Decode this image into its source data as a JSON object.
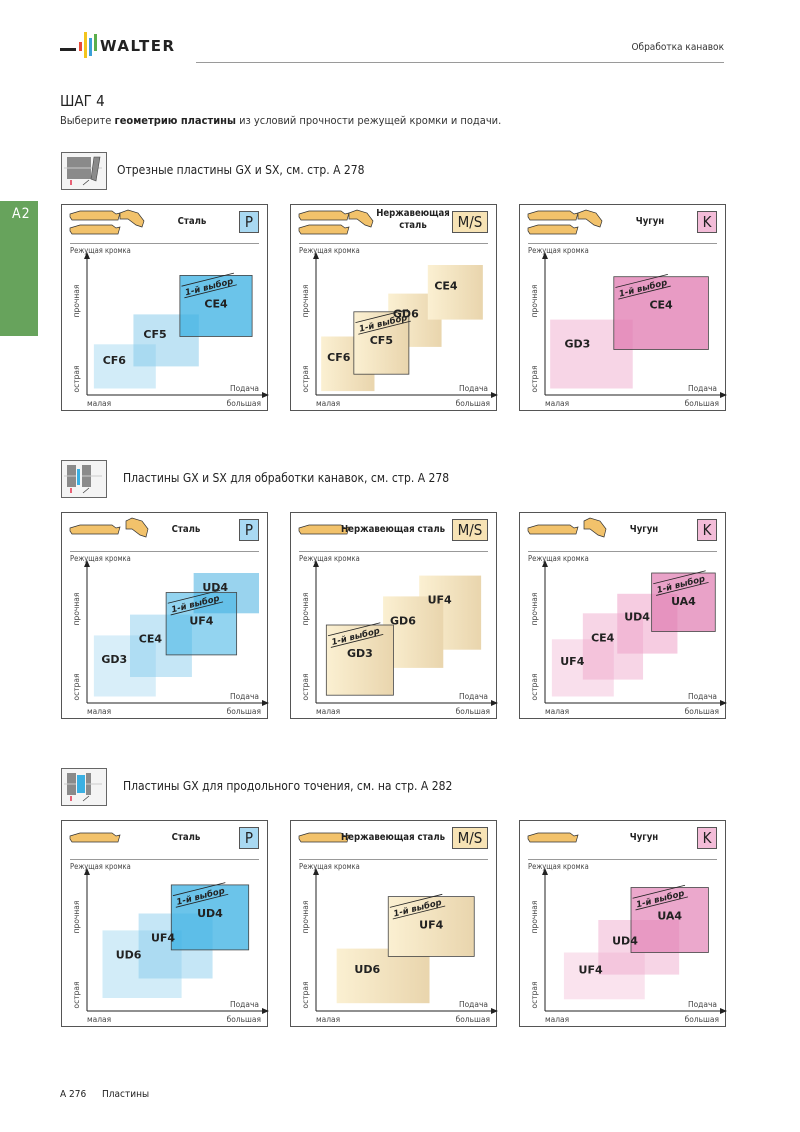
{
  "header": {
    "brand": "WALTER",
    "section": "Обработка канавок"
  },
  "side_tab": "A2",
  "step": {
    "title": "ШАГ 4",
    "desc_pre": "Выберите ",
    "desc_bold": "геометрию пластины",
    "desc_post": " из условий прочности режущей кромки и подачи."
  },
  "labels": {
    "edge_axis": "Режущая кромка",
    "strong": "прочная",
    "sharp": "острая",
    "feed": "Подача",
    "small": "малая",
    "large": "большая",
    "first_choice": "1-й выбор"
  },
  "colors": {
    "P": {
      "badge": "#a9d9f2",
      "box": "#7fc8ea",
      "box_strong": "#3ab0e3"
    },
    "MS": {
      "badge": "#f7e3b5",
      "box": "#f5e2b8",
      "box_strong": "#ead39c"
    },
    "K": {
      "badge": "#f3bcd8",
      "box": "#eea2c8",
      "box_strong": "#e07ab0"
    },
    "side_tab": "#67a35c",
    "insert": "#f2c26b"
  },
  "sections": [
    {
      "title": "Отрезные пластины GX и SX, см. стр. А 278",
      "icon": "parting-tool-icon",
      "panels": [
        {
          "material": "Сталь",
          "badge": "P",
          "group": "P",
          "inserts": 3,
          "chart_data": {
            "type": "heatmap",
            "xlabel": "Подача",
            "ylabel": "Режущая кромка",
            "boxes": [
              {
                "label": "CF6",
                "x": [
                  0.04,
                  0.4
                ],
                "y": [
                  0.05,
                  0.39
                ],
                "alpha": 0.35
              },
              {
                "label": "CF5",
                "x": [
                  0.27,
                  0.65
                ],
                "y": [
                  0.22,
                  0.62
                ],
                "alpha": 0.5
              },
              {
                "label": "CE4",
                "x": [
                  0.54,
                  0.96
                ],
                "y": [
                  0.45,
                  0.92
                ],
                "alpha": 0.75,
                "first_choice": true
              }
            ]
          }
        },
        {
          "material": "Нержавеющая сталь",
          "material_lines": [
            "Нержавеющая",
            "сталь"
          ],
          "badge": "M/S",
          "group": "MS",
          "inserts": 3,
          "chart_data": {
            "type": "heatmap",
            "xlabel": "Подача",
            "ylabel": "Режущая кромка",
            "boxes": [
              {
                "label": "CF6",
                "x": [
                  0.03,
                  0.34
                ],
                "y": [
                  0.03,
                  0.45
                ],
                "alpha": 0.8
              },
              {
                "label": "GD6",
                "x": [
                  0.42,
                  0.73
                ],
                "y": [
                  0.37,
                  0.78
                ],
                "alpha": 0.8
              },
              {
                "label": "CE4",
                "x": [
                  0.65,
                  0.97
                ],
                "y": [
                  0.58,
                  1.0
                ],
                "alpha": 0.8
              },
              {
                "label": "CF5",
                "x": [
                  0.22,
                  0.54
                ],
                "y": [
                  0.16,
                  0.64
                ],
                "alpha": 0.9,
                "first_choice": true
              }
            ]
          }
        },
        {
          "material": "Чугун",
          "badge": "K",
          "group": "K",
          "inserts": 3,
          "chart_data": {
            "type": "heatmap",
            "xlabel": "Подача",
            "ylabel": "Режущая кромка",
            "boxes": [
              {
                "label": "GD3",
                "x": [
                  0.03,
                  0.51
                ],
                "y": [
                  0.05,
                  0.58
                ],
                "alpha": 0.45
              },
              {
                "label": "CE4",
                "x": [
                  0.4,
                  0.95
                ],
                "y": [
                  0.35,
                  0.91
                ],
                "alpha": 0.75,
                "first_choice": true
              }
            ]
          }
        }
      ]
    },
    {
      "title": "Пластины GX и SX для обработки канавок, см. стр. А 278",
      "icon": "grooving-tool-icon",
      "panels": [
        {
          "material": "Сталь",
          "badge": "P",
          "group": "P",
          "inserts": 2,
          "chart_data": {
            "type": "heatmap",
            "xlabel": "Подача",
            "ylabel": "Режущая кромка",
            "boxes": [
              {
                "label": "GD3",
                "x": [
                  0.04,
                  0.4
                ],
                "y": [
                  0.05,
                  0.52
                ],
                "alpha": 0.3
              },
              {
                "label": "CE4",
                "x": [
                  0.25,
                  0.61
                ],
                "y": [
                  0.2,
                  0.68
                ],
                "alpha": 0.45
              },
              {
                "label": "UD4",
                "x": [
                  0.62,
                  1.0
                ],
                "y": [
                  0.69,
                  1.0
                ],
                "alpha": 0.8
              },
              {
                "label": "UF4",
                "x": [
                  0.46,
                  0.87
                ],
                "y": [
                  0.37,
                  0.85
                ],
                "alpha": 0.55,
                "first_choice": true
              }
            ]
          }
        },
        {
          "material": "Нержавеющая сталь",
          "badge": "M/S",
          "group": "MS",
          "inserts": 1,
          "chart_data": {
            "type": "heatmap",
            "xlabel": "Подача",
            "ylabel": "Режущая кромка",
            "boxes": [
              {
                "label": "UF4",
                "x": [
                  0.6,
                  0.96
                ],
                "y": [
                  0.41,
                  0.98
                ],
                "alpha": 0.7
              },
              {
                "label": "GD6",
                "x": [
                  0.39,
                  0.74
                ],
                "y": [
                  0.27,
                  0.82
                ],
                "alpha": 0.8
              },
              {
                "label": "GD3",
                "x": [
                  0.06,
                  0.45
                ],
                "y": [
                  0.06,
                  0.6
                ],
                "alpha": 0.9,
                "first_choice": true
              }
            ]
          }
        },
        {
          "material": "Чугун",
          "badge": "K",
          "group": "K",
          "inserts": 2,
          "chart_data": {
            "type": "heatmap",
            "xlabel": "Подача",
            "ylabel": "Режущая кромка",
            "boxes": [
              {
                "label": "UF4",
                "x": [
                  0.04,
                  0.4
                ],
                "y": [
                  0.05,
                  0.49
                ],
                "alpha": 0.35
              },
              {
                "label": "CE4",
                "x": [
                  0.22,
                  0.57
                ],
                "y": [
                  0.18,
                  0.69
                ],
                "alpha": 0.45
              },
              {
                "label": "UD4",
                "x": [
                  0.42,
                  0.77
                ],
                "y": [
                  0.38,
                  0.84
                ],
                "alpha": 0.55
              },
              {
                "label": "UA4",
                "x": [
                  0.62,
                  0.99
                ],
                "y": [
                  0.55,
                  1.0
                ],
                "alpha": 0.7,
                "first_choice": true
              }
            ]
          }
        }
      ]
    },
    {
      "title": "Пластины GX для продольного точения, см. на стр. А 282",
      "icon": "turning-tool-icon",
      "panels": [
        {
          "material": "Сталь",
          "badge": "P",
          "group": "P",
          "inserts": 1,
          "chart_data": {
            "type": "heatmap",
            "xlabel": "Подача",
            "ylabel": "Режущая кромка",
            "boxes": [
              {
                "label": "UD6",
                "x": [
                  0.09,
                  0.55
                ],
                "y": [
                  0.1,
                  0.62
                ],
                "alpha": 0.35
              },
              {
                "label": "UF4",
                "x": [
                  0.3,
                  0.73
                ],
                "y": [
                  0.25,
                  0.75
                ],
                "alpha": 0.45
              },
              {
                "label": "UD4",
                "x": [
                  0.49,
                  0.94
                ],
                "y": [
                  0.47,
                  0.97
                ],
                "alpha": 0.75,
                "first_choice": true
              }
            ]
          }
        },
        {
          "material": "Нержавеющая сталь",
          "badge": "M/S",
          "group": "MS",
          "inserts": 1,
          "chart_data": {
            "type": "heatmap",
            "xlabel": "Подача",
            "ylabel": "Режущая кромка",
            "boxes": [
              {
                "label": "UD6",
                "x": [
                  0.12,
                  0.66
                ],
                "y": [
                  0.06,
                  0.48
                ],
                "alpha": 0.8
              },
              {
                "label": "UF4",
                "x": [
                  0.42,
                  0.92
                ],
                "y": [
                  0.42,
                  0.88
                ],
                "alpha": 0.9,
                "first_choice": true
              }
            ]
          }
        },
        {
          "material": "Чугун",
          "badge": "K",
          "group": "K",
          "inserts": 1,
          "chart_data": {
            "type": "heatmap",
            "xlabel": "Подача",
            "ylabel": "Режущая кромка",
            "boxes": [
              {
                "label": "UF4",
                "x": [
                  0.11,
                  0.58
                ],
                "y": [
                  0.09,
                  0.45
                ],
                "alpha": 0.3
              },
              {
                "label": "UD4",
                "x": [
                  0.31,
                  0.78
                ],
                "y": [
                  0.28,
                  0.7
                ],
                "alpha": 0.45
              },
              {
                "label": "UA4",
                "x": [
                  0.5,
                  0.95
                ],
                "y": [
                  0.45,
                  0.95
                ],
                "alpha": 0.65,
                "first_choice": true
              }
            ]
          }
        }
      ]
    }
  ],
  "footer": {
    "page": "A 276",
    "name": "Пластины"
  }
}
